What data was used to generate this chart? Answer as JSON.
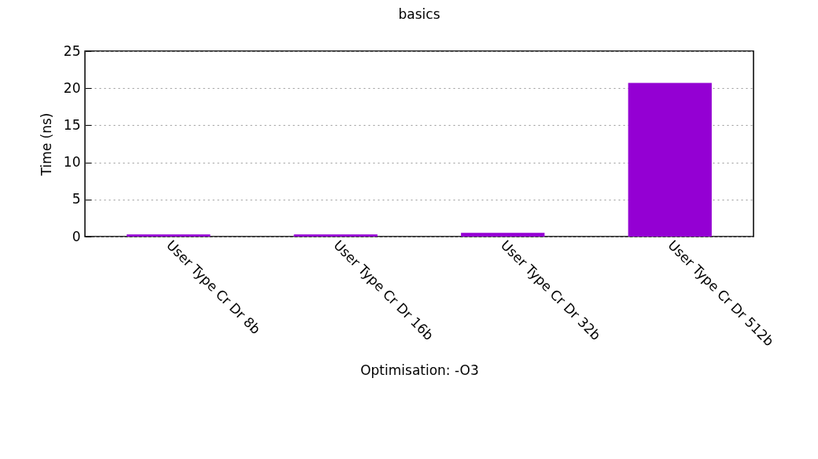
{
  "chart_data": {
    "type": "bar",
    "title": "basics",
    "xlabel": "Optimisation: -O3",
    "ylabel": "Time (ns)",
    "categories": [
      "User Type Cr Dr 8b",
      "User Type Cr Dr 16b",
      "User Type Cr Dr 32b",
      "User Type Cr Dr 512b"
    ],
    "values": [
      0.3,
      0.3,
      0.5,
      20.7
    ],
    "color": "#9400d3",
    "ylim": [
      0,
      25
    ],
    "yticks": [
      0,
      5,
      10,
      15,
      20,
      25
    ],
    "grid": "y"
  }
}
